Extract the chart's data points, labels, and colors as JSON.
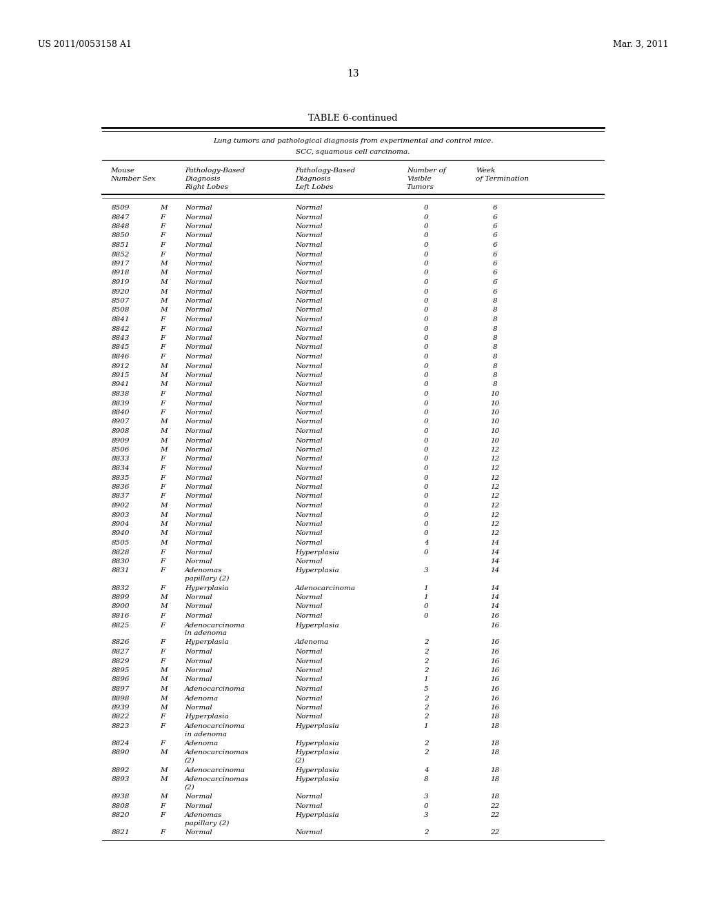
{
  "patent_number": "US 2011/0053158 A1",
  "date": "Mar. 3, 2011",
  "page_number": "13",
  "table_title": "TABLE 6-continued",
  "table_caption_line1": "Lung tumors and pathological diagnosis from experimental and control mice.",
  "table_caption_line2": "SCC, squamous cell carcinoma.",
  "rows": [
    [
      "8509",
      "M",
      "Normal",
      "Normal",
      "0",
      "6"
    ],
    [
      "8847",
      "F",
      "Normal",
      "Normal",
      "0",
      "6"
    ],
    [
      "8848",
      "F",
      "Normal",
      "Normal",
      "0",
      "6"
    ],
    [
      "8850",
      "F",
      "Normal",
      "Normal",
      "0",
      "6"
    ],
    [
      "8851",
      "F",
      "Normal",
      "Normal",
      "0",
      "6"
    ],
    [
      "8852",
      "F",
      "Normal",
      "Normal",
      "0",
      "6"
    ],
    [
      "8917",
      "M",
      "Normal",
      "Normal",
      "0",
      "6"
    ],
    [
      "8918",
      "M",
      "Normal",
      "Normal",
      "0",
      "6"
    ],
    [
      "8919",
      "M",
      "Normal",
      "Normal",
      "0",
      "6"
    ],
    [
      "8920",
      "M",
      "Normal",
      "Normal",
      "0",
      "6"
    ],
    [
      "8507",
      "M",
      "Normal",
      "Normal",
      "0",
      "8"
    ],
    [
      "8508",
      "M",
      "Normal",
      "Normal",
      "0",
      "8"
    ],
    [
      "8841",
      "F",
      "Normal",
      "Normal",
      "0",
      "8"
    ],
    [
      "8842",
      "F",
      "Normal",
      "Normal",
      "0",
      "8"
    ],
    [
      "8843",
      "F",
      "Normal",
      "Normal",
      "0",
      "8"
    ],
    [
      "8845",
      "F",
      "Normal",
      "Normal",
      "0",
      "8"
    ],
    [
      "8846",
      "F",
      "Normal",
      "Normal",
      "0",
      "8"
    ],
    [
      "8912",
      "M",
      "Normal",
      "Normal",
      "0",
      "8"
    ],
    [
      "8915",
      "M",
      "Normal",
      "Normal",
      "0",
      "8"
    ],
    [
      "8941",
      "M",
      "Normal",
      "Normal",
      "0",
      "8"
    ],
    [
      "8838",
      "F",
      "Normal",
      "Normal",
      "0",
      "10"
    ],
    [
      "8839",
      "F",
      "Normal",
      "Normal",
      "0",
      "10"
    ],
    [
      "8840",
      "F",
      "Normal",
      "Normal",
      "0",
      "10"
    ],
    [
      "8907",
      "M",
      "Normal",
      "Normal",
      "0",
      "10"
    ],
    [
      "8908",
      "M",
      "Normal",
      "Normal",
      "0",
      "10"
    ],
    [
      "8909",
      "M",
      "Normal",
      "Normal",
      "0",
      "10"
    ],
    [
      "8506",
      "M",
      "Normal",
      "Normal",
      "0",
      "12"
    ],
    [
      "8833",
      "F",
      "Normal",
      "Normal",
      "0",
      "12"
    ],
    [
      "8834",
      "F",
      "Normal",
      "Normal",
      "0",
      "12"
    ],
    [
      "8835",
      "F",
      "Normal",
      "Normal",
      "0",
      "12"
    ],
    [
      "8836",
      "F",
      "Normal",
      "Normal",
      "0",
      "12"
    ],
    [
      "8837",
      "F",
      "Normal",
      "Normal",
      "0",
      "12"
    ],
    [
      "8902",
      "M",
      "Normal",
      "Normal",
      "0",
      "12"
    ],
    [
      "8903",
      "M",
      "Normal",
      "Normal",
      "0",
      "12"
    ],
    [
      "8904",
      "M",
      "Normal",
      "Normal",
      "0",
      "12"
    ],
    [
      "8940",
      "M",
      "Normal",
      "Normal",
      "0",
      "12"
    ],
    [
      "8505",
      "M",
      "Normal",
      "Normal",
      "4",
      "14"
    ],
    [
      "8828",
      "F",
      "Normal",
      "Hyperplasia",
      "0",
      "14"
    ],
    [
      "8830",
      "F",
      "Normal",
      "Normal",
      "",
      "14"
    ],
    [
      "8831",
      "F",
      "Adenomas\npapillary (2)",
      "Hyperplasia",
      "3",
      "14"
    ],
    [
      "8832",
      "F",
      "Hyperplasia",
      "Adenocarcinoma",
      "1",
      "14"
    ],
    [
      "8899",
      "M",
      "Normal",
      "Normal",
      "1",
      "14"
    ],
    [
      "8900",
      "M",
      "Normal",
      "Normal",
      "0",
      "14"
    ],
    [
      "8816",
      "F",
      "Normal",
      "Normal",
      "0",
      "16"
    ],
    [
      "8825",
      "F",
      "Adenocarcinoma\nin adenoma",
      "Hyperplasia",
      "",
      "16"
    ],
    [
      "8826",
      "F",
      "Hyperplasia",
      "Adenoma",
      "2",
      "16"
    ],
    [
      "8827",
      "F",
      "Normal",
      "Normal",
      "2",
      "16"
    ],
    [
      "8829",
      "F",
      "Normal",
      "Normal",
      "2",
      "16"
    ],
    [
      "8895",
      "M",
      "Normal",
      "Normal",
      "2",
      "16"
    ],
    [
      "8896",
      "M",
      "Normal",
      "Normal",
      "1",
      "16"
    ],
    [
      "8897",
      "M",
      "Adenocarcinoma",
      "Normal",
      "5",
      "16"
    ],
    [
      "8898",
      "M",
      "Adenoma",
      "Normal",
      "2",
      "16"
    ],
    [
      "8939",
      "M",
      "Normal",
      "Normal",
      "2",
      "16"
    ],
    [
      "8822",
      "F",
      "Hyperplasia",
      "Normal",
      "2",
      "18"
    ],
    [
      "8823",
      "F",
      "Adenocarcinoma\nin adenoma",
      "Hyperplasia",
      "1",
      "18"
    ],
    [
      "8824",
      "F",
      "Adenoma",
      "Hyperplasia",
      "2",
      "18"
    ],
    [
      "8890",
      "M",
      "Adenocarcinomas\n(2)",
      "Hyperplasia\n(2)",
      "2",
      "18"
    ],
    [
      "8892",
      "M",
      "Adenocarcinoma",
      "Hyperplasia",
      "4",
      "18"
    ],
    [
      "8893",
      "M",
      "Adenocarcinomas\n(2)",
      "Hyperplasia",
      "8",
      "18"
    ],
    [
      "8938",
      "M",
      "Normal",
      "Normal",
      "3",
      "18"
    ],
    [
      "8808",
      "F",
      "Normal",
      "Normal",
      "0",
      "22"
    ],
    [
      "8820",
      "F",
      "Adenomas\npapillary (2)",
      "Hyperplasia",
      "3",
      "22"
    ],
    [
      "8821",
      "F",
      "Normal",
      "Normal",
      "2",
      "22"
    ]
  ],
  "background_color": "#ffffff",
  "text_color": "#000000"
}
